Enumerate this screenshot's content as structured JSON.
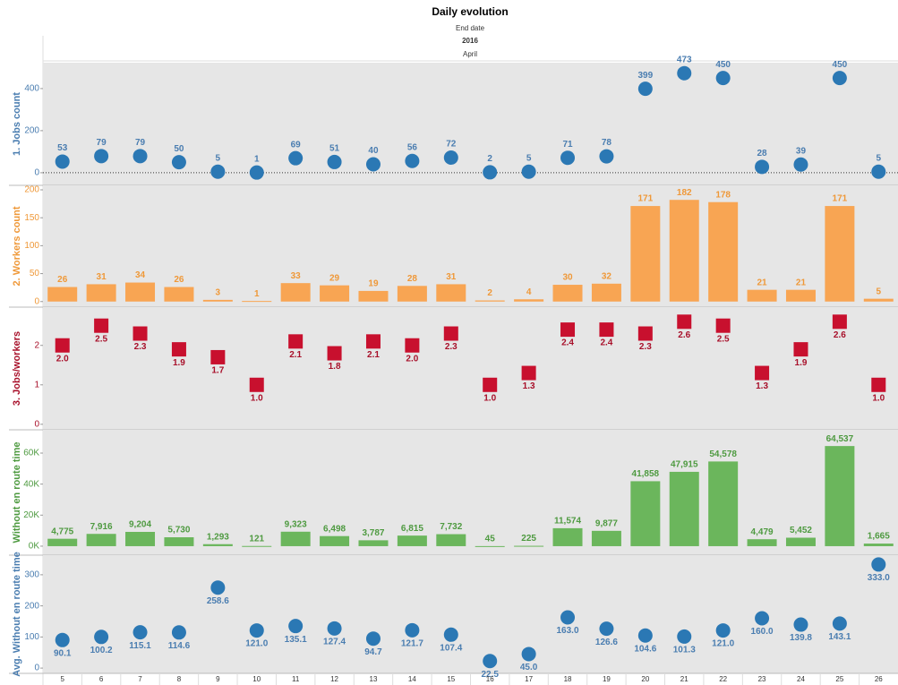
{
  "header": {
    "title": "Daily evolution",
    "line1": "End date",
    "line2": "2016",
    "line3": "April"
  },
  "chart_data": [
    {
      "type": "dot",
      "y_label": "1. Jobs count",
      "color": "#2b78b4",
      "label_color": "#4a7db0",
      "categories": [
        "5",
        "6",
        "7",
        "8",
        "9",
        "10",
        "11",
        "12",
        "13",
        "14",
        "15",
        "16",
        "17",
        "18",
        "19",
        "20",
        "21",
        "22",
        "23",
        "24",
        "25",
        "26"
      ],
      "values": [
        53,
        79,
        79,
        50,
        5,
        1,
        69,
        51,
        40,
        56,
        72,
        2,
        5,
        71,
        78,
        399,
        473,
        450,
        28,
        39,
        450,
        5
      ],
      "ylim": [
        -60,
        523
      ],
      "yticks": [
        0,
        200,
        400
      ],
      "zero_line": true
    },
    {
      "type": "bar",
      "y_label": "2. Workers count",
      "color": "#f8a553",
      "label_color": "#ef9838",
      "categories": [
        "5",
        "6",
        "7",
        "8",
        "9",
        "10",
        "11",
        "12",
        "13",
        "14",
        "15",
        "16",
        "17",
        "18",
        "19",
        "20",
        "21",
        "22",
        "23",
        "24",
        "25",
        "26"
      ],
      "values": [
        26,
        31,
        34,
        26,
        3,
        1,
        33,
        29,
        19,
        28,
        31,
        2,
        4,
        30,
        32,
        171,
        182,
        178,
        21,
        21,
        171,
        5
      ],
      "ylim": [
        -10,
        208
      ],
      "yticks": [
        0,
        50,
        100,
        150,
        200
      ]
    },
    {
      "type": "square",
      "y_label": "3. Jobs/workers",
      "color": "#c8102e",
      "label_color": "#a8102a",
      "categories": [
        "5",
        "6",
        "7",
        "8",
        "9",
        "10",
        "11",
        "12",
        "13",
        "14",
        "15",
        "16",
        "17",
        "18",
        "19",
        "20",
        "21",
        "22",
        "23",
        "24",
        "25",
        "26"
      ],
      "values": [
        2.0,
        2.5,
        2.3,
        1.9,
        1.7,
        1.0,
        2.1,
        1.8,
        2.1,
        2.0,
        2.3,
        1.0,
        1.3,
        2.4,
        2.4,
        2.3,
        2.6,
        2.5,
        1.3,
        1.9,
        2.6,
        1.0
      ],
      "value_labels": [
        "2.0",
        "2.5",
        "2.3",
        "1.9",
        "1.7",
        "1.0",
        "2.1",
        "1.8",
        "2.1",
        "2.0",
        "2.3",
        "1.0",
        "1.3",
        "2.4",
        "2.4",
        "2.3",
        "2.6",
        "2.5",
        "1.3",
        "1.9",
        "2.6",
        "1.0"
      ],
      "ylim": [
        -0.14,
        2.97
      ],
      "yticks": [
        0,
        1,
        2
      ]
    },
    {
      "type": "bar",
      "y_label": "Without en route time",
      "color": "#6bb65c",
      "label_color": "#4e9a40",
      "categories": [
        "5",
        "6",
        "7",
        "8",
        "9",
        "10",
        "11",
        "12",
        "13",
        "14",
        "15",
        "16",
        "17",
        "18",
        "19",
        "20",
        "21",
        "22",
        "23",
        "24",
        "25",
        "26"
      ],
      "values": [
        4775,
        7916,
        9204,
        5730,
        1293,
        121,
        9323,
        6498,
        3787,
        6815,
        7732,
        45,
        225,
        11574,
        9877,
        41858,
        47915,
        54578,
        4479,
        5452,
        64537,
        1665
      ],
      "value_labels": [
        "4,775",
        "7,916",
        "9,204",
        "5,730",
        "1,293",
        "121",
        "9,323",
        "6,498",
        "3,787",
        "6,815",
        "7,732",
        "45",
        "225",
        "11,574",
        "9,877",
        "41,858",
        "47,915",
        "54,578",
        "4,479",
        "5,452",
        "64,537",
        "1,665"
      ],
      "ylim": [
        -5800,
        75000
      ],
      "yticks": [
        {
          "value": 0,
          "label": "0K"
        },
        {
          "value": 20000,
          "label": "20K"
        },
        {
          "value": 40000,
          "label": "40K"
        },
        {
          "value": 60000,
          "label": "60K"
        }
      ]
    },
    {
      "type": "dot",
      "y_label": "Avg. Without en route time",
      "color": "#2b78b4",
      "label_color": "#4a7db0",
      "categories": [
        "5",
        "6",
        "7",
        "8",
        "9",
        "10",
        "11",
        "12",
        "13",
        "14",
        "15",
        "16",
        "17",
        "18",
        "19",
        "20",
        "21",
        "22",
        "23",
        "24",
        "25",
        "26"
      ],
      "values": [
        90.1,
        100.2,
        115.1,
        114.6,
        258.6,
        121.0,
        135.1,
        127.4,
        94.7,
        121.7,
        107.4,
        22.5,
        45.0,
        163.0,
        126.6,
        104.6,
        101.3,
        121.0,
        160.0,
        139.8,
        143.1,
        333.0
      ],
      "value_labels": [
        "90.1",
        "100.2",
        "115.1",
        "114.6",
        "258.6",
        "121.0",
        "135.1",
        "127.4",
        "94.7",
        "121.7",
        "107.4",
        "22.5",
        "45.0",
        "163.0",
        "126.6",
        "104.6",
        "101.3",
        "121.0",
        "160.0",
        "139.8",
        "143.1",
        "333.0"
      ],
      "ylim": [
        -17,
        363
      ],
      "yticks": [
        0,
        100,
        200,
        300
      ]
    }
  ]
}
